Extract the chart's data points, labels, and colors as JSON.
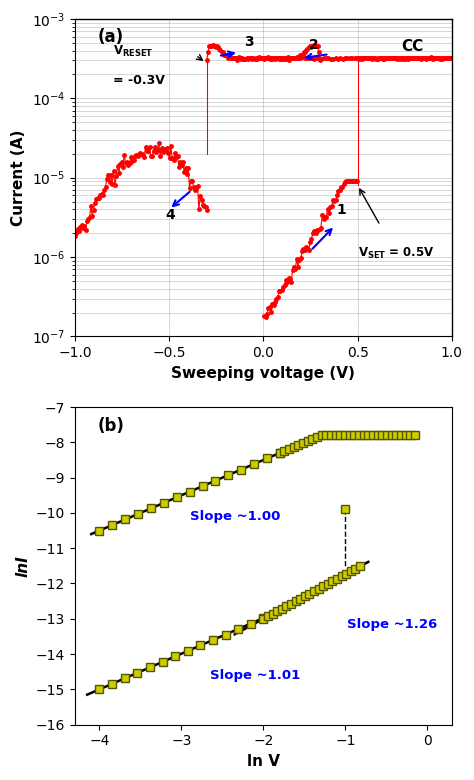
{
  "panel_a": {
    "xlabel": "Sweeping voltage (V)",
    "ylabel": "Current (A)",
    "color": "#FF0000",
    "markersize": 2.5,
    "linewidth": 0.8
  },
  "panel_b": {
    "xlabel": "ln V",
    "ylabel": "lnI",
    "xlim": [
      -4.3,
      0.3
    ],
    "ylim": [
      -16,
      -7
    ],
    "marker_color": "#CCCC00",
    "marker_edge": "#555500",
    "line_color": "#000000",
    "slope1_label": "Slope ~1.00",
    "slope2_label": "Slope ~1.26",
    "slope3_label": "Slope ~1.01"
  }
}
